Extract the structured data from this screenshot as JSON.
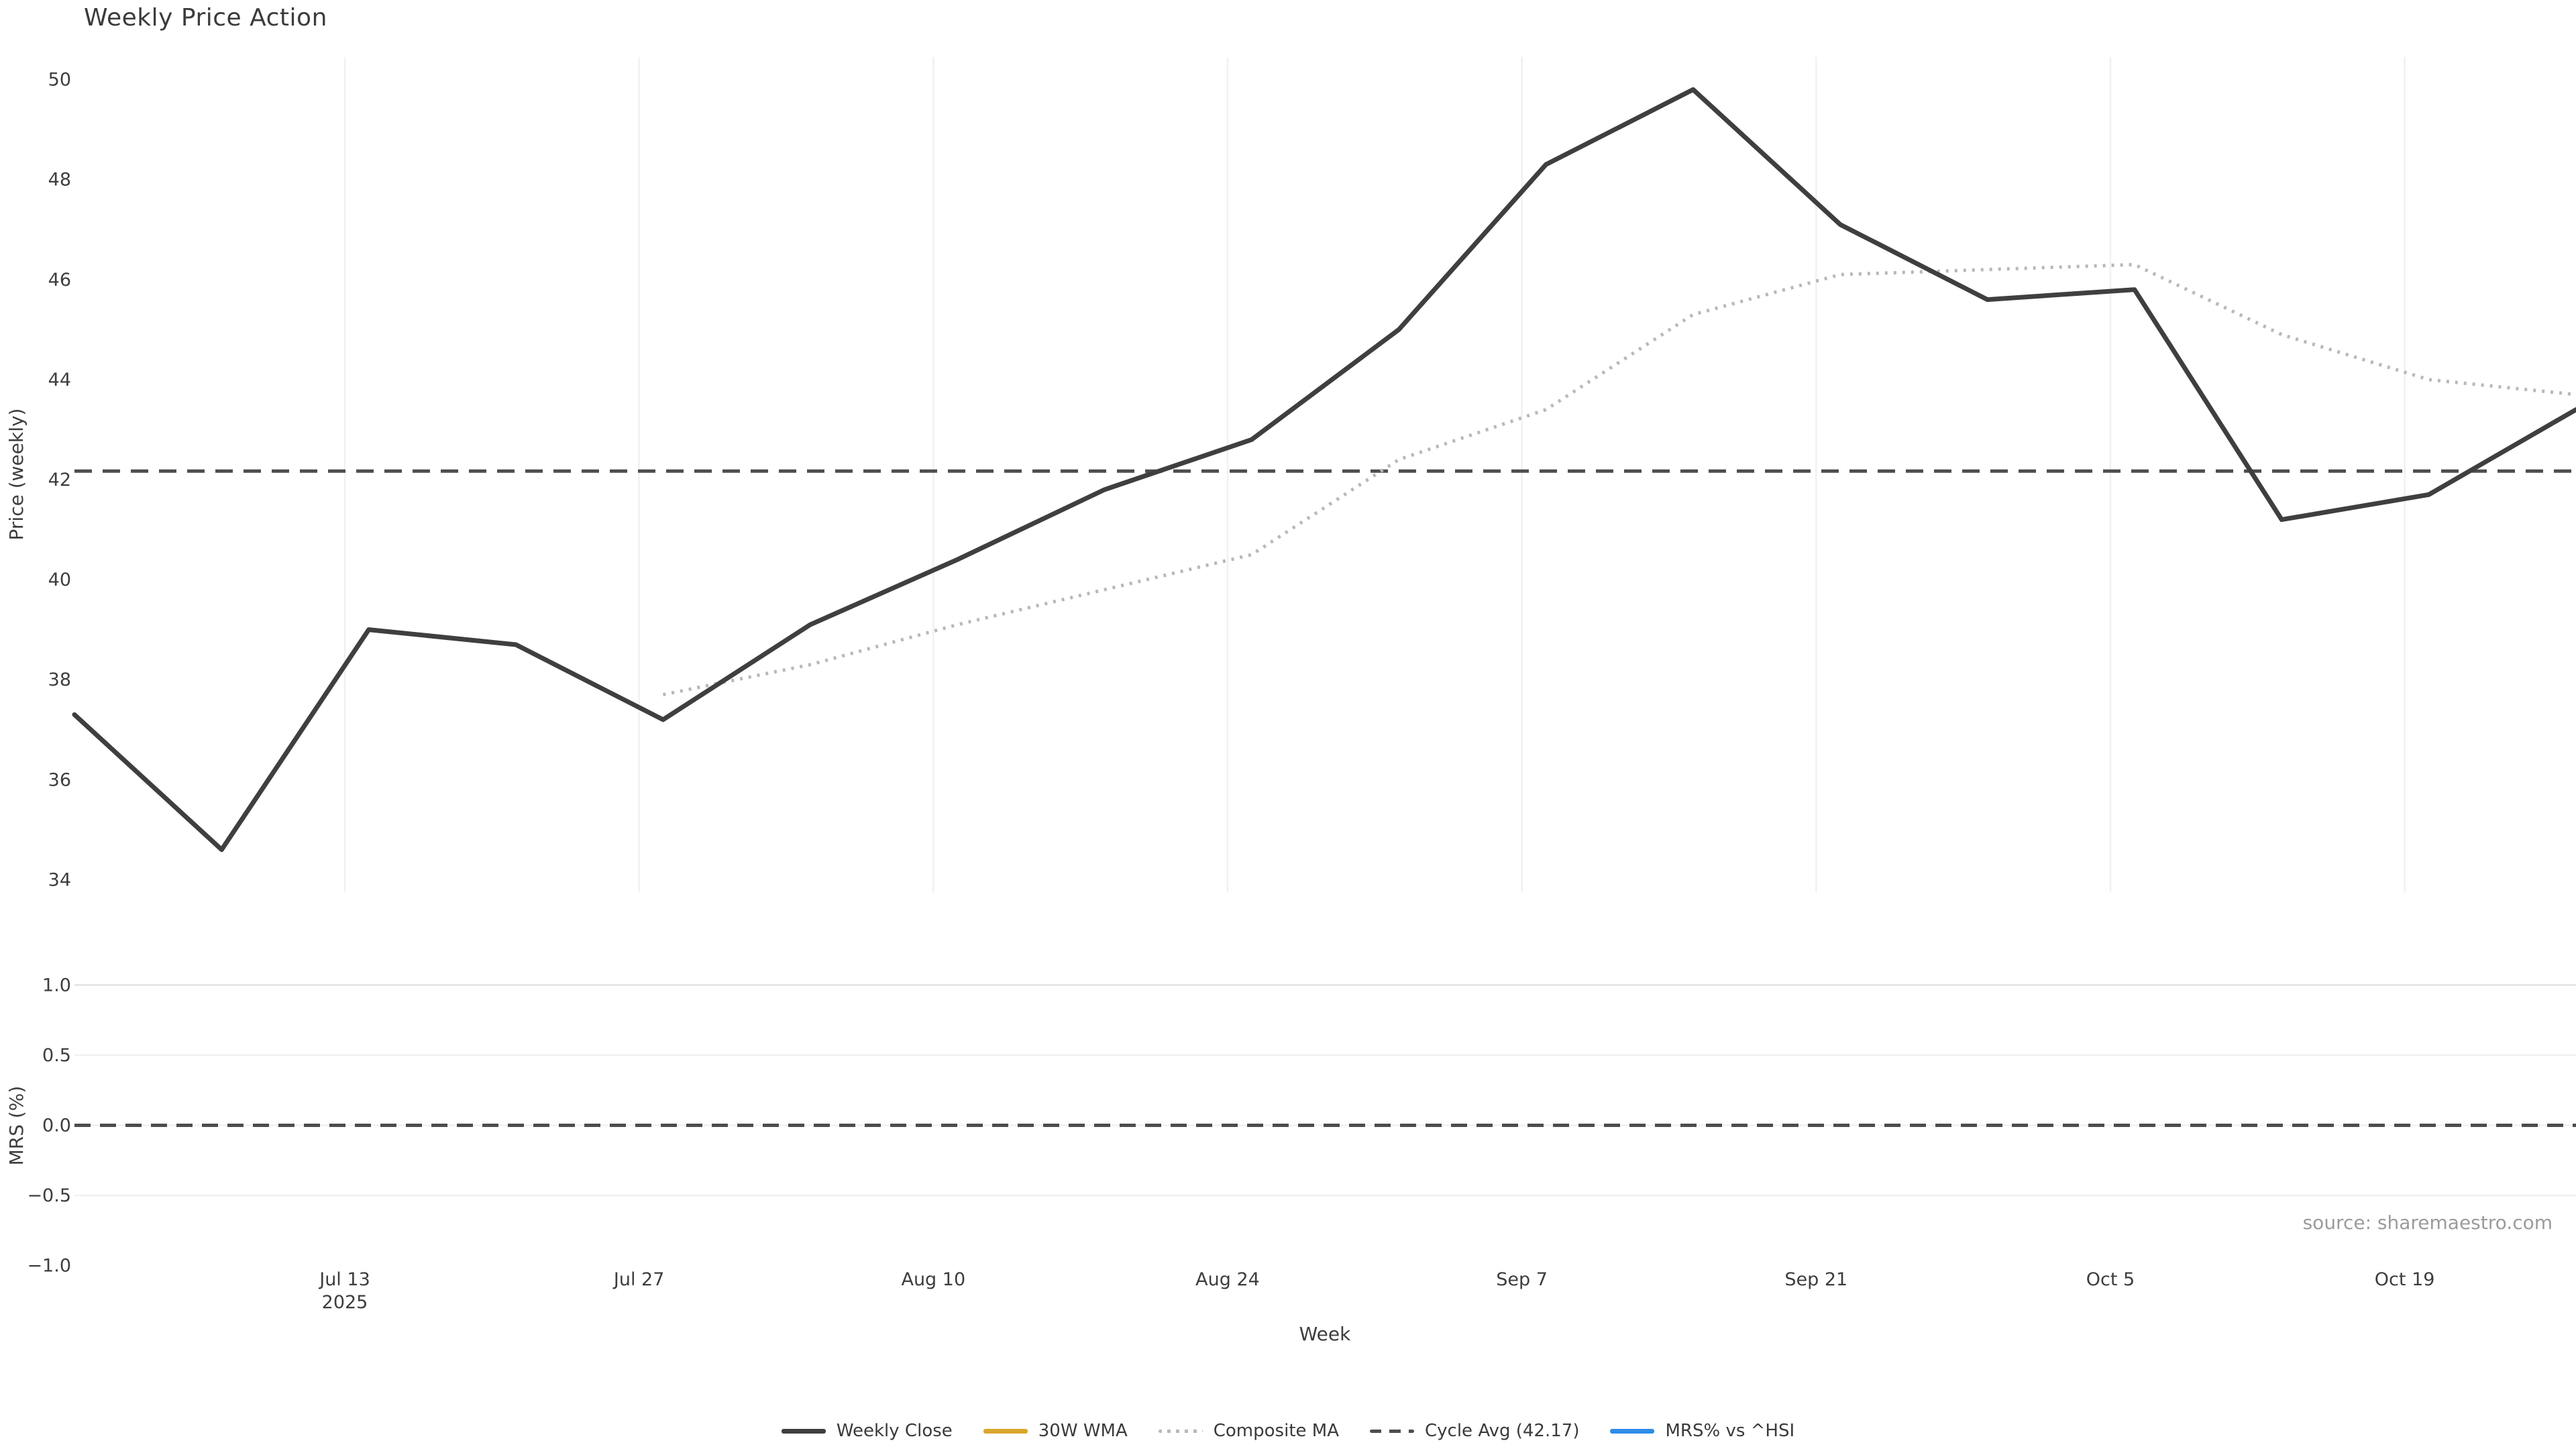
{
  "title": "Weekly Price Action",
  "source_text": "source: sharemaestro.com",
  "chart_data": {
    "type": "line",
    "title": "Weekly Price Action",
    "xlabel": "Week",
    "x_tick_labels": [
      {
        "label": "Jul 13",
        "sublabel": "2025"
      },
      {
        "label": "Jul 27"
      },
      {
        "label": "Aug 10"
      },
      {
        "label": "Aug 24"
      },
      {
        "label": "Sep 7"
      },
      {
        "label": "Sep 21"
      },
      {
        "label": "Oct 5"
      },
      {
        "label": "Oct 19"
      }
    ],
    "price_panel": {
      "ylabel": "Price (weekly)",
      "ticks": [
        34,
        36,
        38,
        40,
        42,
        44,
        46,
        48,
        50
      ],
      "ylim": [
        33.75,
        50.45
      ],
      "grid": "vertical-only"
    },
    "mrs_panel": {
      "ylabel": "MRS (%)",
      "ticks": [
        {
          "label": "1.0",
          "value": 1.0
        },
        {
          "label": "0.5",
          "value": 0.5
        },
        {
          "label": "0.0",
          "value": 0.0
        },
        {
          "label": "−0.5",
          "value": -0.5
        },
        {
          "label": "−1.0",
          "value": -1.0
        }
      ],
      "ylim": [
        -1.04,
        1.04
      ],
      "grid": "horizontal-only",
      "zero_line": 0.0
    },
    "n_weeks": 18,
    "series": [
      {
        "name": "Weekly Close",
        "panel": "price",
        "style": "solid",
        "color": "#3f3f3f",
        "values": [
          37.3,
          34.6,
          39.0,
          38.7,
          37.2,
          39.1,
          40.4,
          41.8,
          42.8,
          45.0,
          48.3,
          49.8,
          47.1,
          45.6,
          45.8,
          41.2,
          41.7,
          43.4
        ]
      },
      {
        "name": "30W WMA",
        "panel": "price",
        "style": "solid",
        "color": "#d9a62e",
        "values": []
      },
      {
        "name": "Composite MA",
        "panel": "price",
        "style": "dotted",
        "color": "#b8b8b8",
        "values": [
          null,
          null,
          null,
          null,
          37.7,
          38.3,
          39.1,
          39.8,
          40.5,
          42.4,
          43.4,
          45.3,
          46.1,
          46.2,
          46.3,
          44.9,
          44.0,
          43.7
        ]
      },
      {
        "name": "Cycle Avg (42.17)",
        "panel": "price",
        "style": "dashed",
        "color": "#4d4d4d",
        "constant": 42.17
      },
      {
        "name": "MRS% vs ^HSI",
        "panel": "mrs",
        "style": "solid",
        "color": "#2e8de8",
        "values": []
      }
    ],
    "cycle_avg": 42.17,
    "legend_position": "bottom-center"
  },
  "legend": {
    "items": [
      {
        "label": "Weekly Close",
        "color": "#3f3f3f",
        "style": "solid"
      },
      {
        "label": "30W WMA",
        "color": "#d9a62e",
        "style": "solid"
      },
      {
        "label": "Composite MA",
        "color": "#b8b8b8",
        "style": "dotted"
      },
      {
        "label": "Cycle Avg (42.17)",
        "color": "#4d4d4d",
        "style": "dashed"
      },
      {
        "label": "MRS% vs ^HSI",
        "color": "#2e8de8",
        "style": "solid"
      }
    ]
  }
}
